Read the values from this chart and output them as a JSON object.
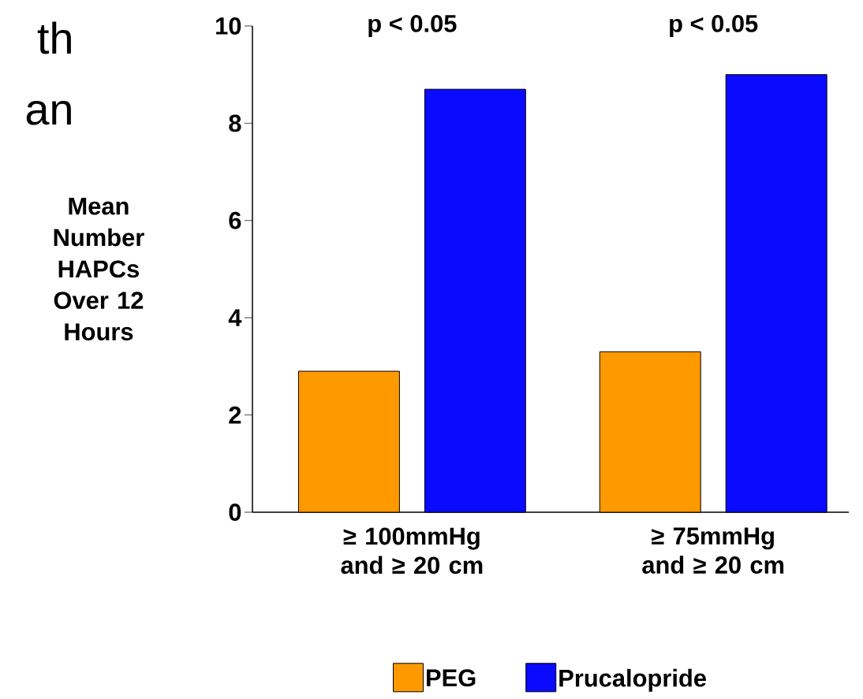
{
  "chart_data": {
    "type": "bar",
    "ylabel": "Mean Number HAPCs Over 12 Hours",
    "categories": [
      "≥ 100mmHg and ≥ 20 cm",
      "≥ 75mmHg and ≥ 20 cm"
    ],
    "series": [
      {
        "name": "PEG",
        "color": "#ff9900",
        "values": [
          2.9,
          3.3
        ]
      },
      {
        "name": "Prucalopride",
        "color": "#0a0aff",
        "values": [
          8.7,
          9.0
        ]
      }
    ],
    "ylim": [
      0,
      10
    ],
    "yticks": [
      0,
      2,
      4,
      6,
      8,
      10
    ],
    "grid": false,
    "legend": "bottom",
    "annotations": [
      "th",
      "an",
      "p < 0.05",
      "p < 0.05"
    ]
  }
}
